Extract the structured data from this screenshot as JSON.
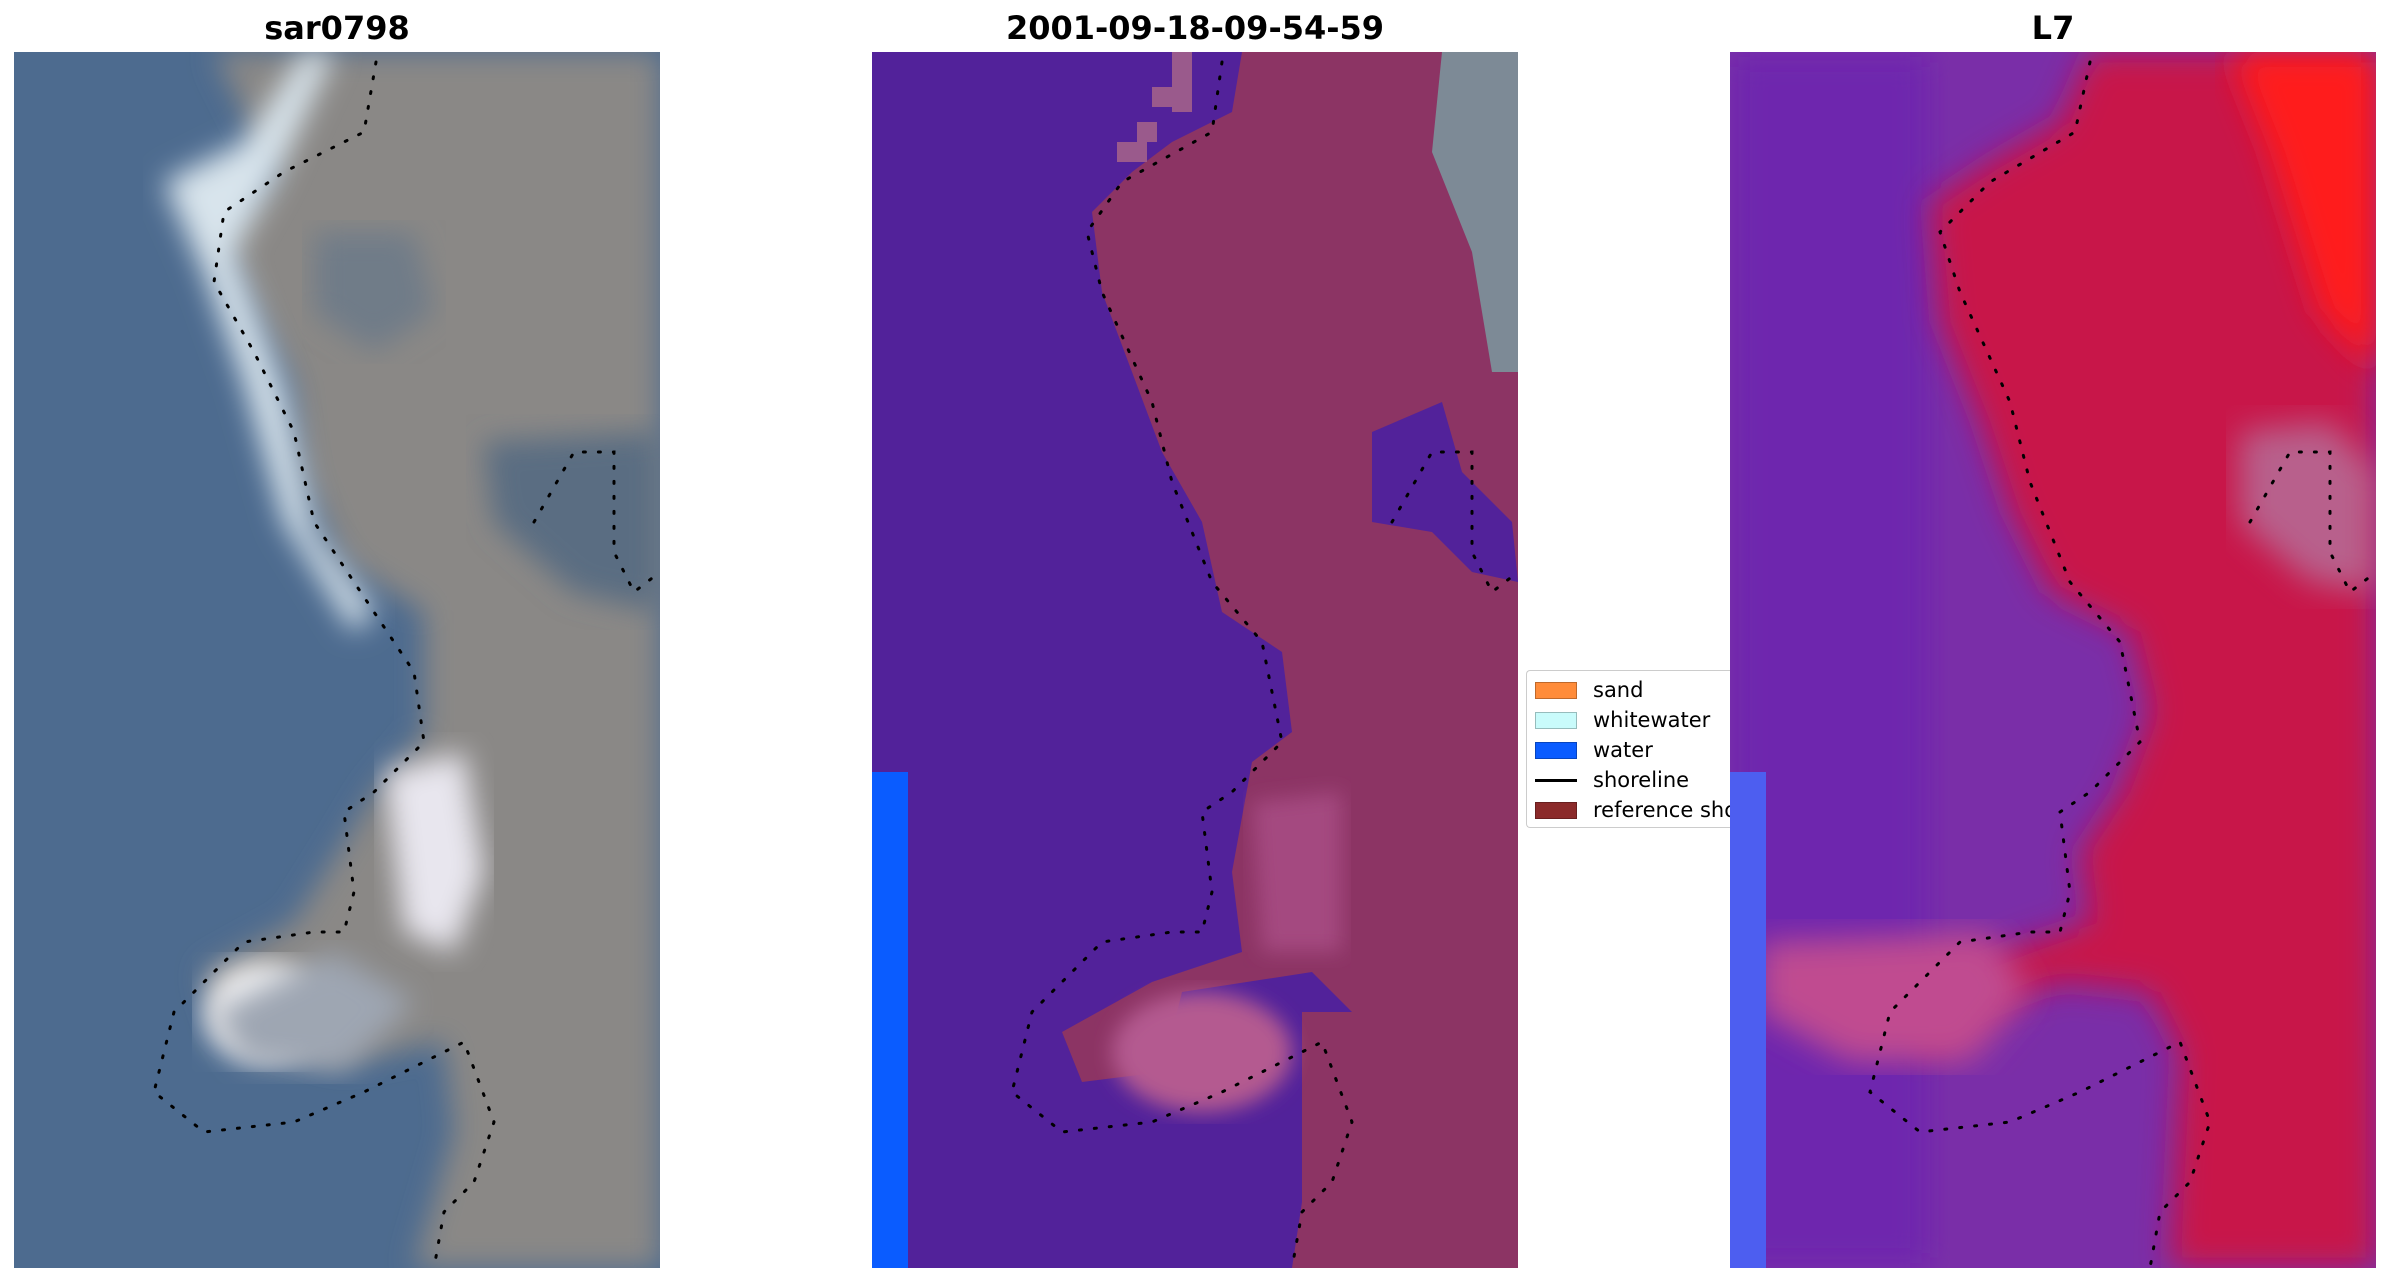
{
  "panels": [
    {
      "title": "sar0798"
    },
    {
      "title": "2001-09-18-09-54-59"
    },
    {
      "title": "L7"
    }
  ],
  "legend": {
    "items": [
      {
        "label": "sand",
        "color": "#ff8c3a",
        "kind": "patch"
      },
      {
        "label": "whitewater",
        "color": "#c9fbfb",
        "kind": "patch"
      },
      {
        "label": "water",
        "color": "#0a5cff",
        "kind": "patch"
      },
      {
        "label": "shoreline",
        "color": "#000000",
        "kind": "line"
      },
      {
        "label": "reference shoreline",
        "color": "#8b2a2a",
        "kind": "patch"
      }
    ]
  },
  "colors": {
    "sea_rgb": "#4c6a8e",
    "land_rgb": "#8c8a88",
    "whitewater_rgb": "#e6ecf2",
    "classified_water": "#52229a",
    "classified_land": "#8c3464",
    "water_class_strip": "#0a5cff",
    "falsecolor_water": "#7a2ea8",
    "falsecolor_land": "#c8184a",
    "falsecolor_bright": "#ff1a1a"
  }
}
